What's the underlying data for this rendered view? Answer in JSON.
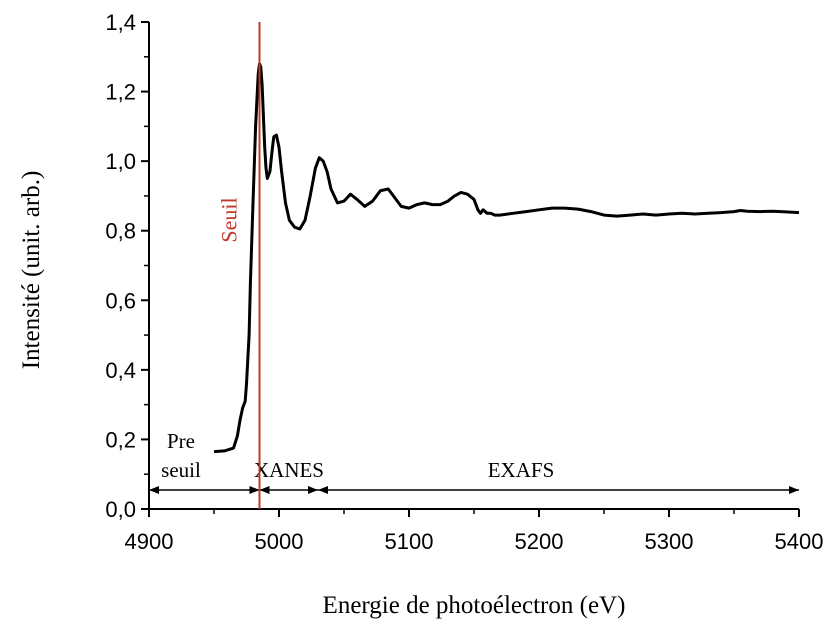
{
  "chart_data": {
    "type": "line",
    "xlabel": "Energie de photoélectron (eV)",
    "ylabel": "Intensité (unit. arb.)",
    "xlim": [
      4900,
      5400
    ],
    "ylim": [
      0.0,
      1.4
    ],
    "xticks": [
      4900,
      5000,
      5100,
      5200,
      5300,
      5400
    ],
    "xtick_labels": [
      "4900",
      "5000",
      "5100",
      "5200",
      "5300",
      "5400"
    ],
    "yticks": [
      0.0,
      0.2,
      0.4,
      0.6,
      0.8,
      1.0,
      1.2,
      1.4
    ],
    "ytick_labels": [
      "0,0",
      "0,2",
      "0,4",
      "0,6",
      "0,8",
      "1,0",
      "1,2",
      "1,4"
    ],
    "grid": false,
    "series": [
      {
        "x": [
          4950,
          4958,
          4965,
          4968,
          4970,
          4972,
          4974,
          4975,
          4977,
          4978,
          4980,
          4982,
          4984,
          4985,
          4986,
          4987,
          4988,
          4989,
          4990,
          4991,
          4993,
          4995,
          4996,
          4998,
          5000,
          5002,
          5005,
          5008,
          5012,
          5016,
          5020,
          5024,
          5028,
          5031,
          5034,
          5037,
          5040,
          5045,
          5050,
          5055,
          5060,
          5066,
          5072,
          5078,
          5084,
          5088,
          5094,
          5100,
          5106,
          5112,
          5118,
          5124,
          5130,
          5135,
          5140,
          5145,
          5150,
          5153,
          5155,
          5157,
          5160,
          5163,
          5166,
          5170,
          5180,
          5190,
          5200,
          5210,
          5220,
          5230,
          5240,
          5250,
          5260,
          5270,
          5280,
          5290,
          5300,
          5310,
          5320,
          5330,
          5340,
          5350,
          5355,
          5360,
          5370,
          5380,
          5390,
          5400
        ],
        "y": [
          0.165,
          0.167,
          0.175,
          0.21,
          0.255,
          0.29,
          0.31,
          0.36,
          0.5,
          0.65,
          0.88,
          1.1,
          1.25,
          1.28,
          1.27,
          1.22,
          1.13,
          1.04,
          0.98,
          0.95,
          0.97,
          1.04,
          1.07,
          1.075,
          1.04,
          0.97,
          0.88,
          0.83,
          0.81,
          0.805,
          0.83,
          0.9,
          0.98,
          1.01,
          1.0,
          0.97,
          0.92,
          0.88,
          0.885,
          0.905,
          0.89,
          0.87,
          0.885,
          0.915,
          0.92,
          0.9,
          0.87,
          0.865,
          0.875,
          0.88,
          0.875,
          0.875,
          0.885,
          0.9,
          0.91,
          0.905,
          0.89,
          0.86,
          0.85,
          0.86,
          0.85,
          0.85,
          0.845,
          0.845,
          0.85,
          0.855,
          0.86,
          0.865,
          0.865,
          0.862,
          0.855,
          0.845,
          0.842,
          0.845,
          0.848,
          0.845,
          0.848,
          0.85,
          0.848,
          0.85,
          0.852,
          0.855,
          0.858,
          0.856,
          0.855,
          0.856,
          0.854,
          0.852
        ],
        "color": "#000000"
      }
    ],
    "annotations": {
      "edge_label": "Seuil",
      "edge_x": 4985,
      "edge_color": "#c0392b",
      "regions": [
        {
          "label_lines": [
            "Pre",
            "seuil"
          ],
          "x_start": 4900,
          "x_end": 4985
        },
        {
          "label_lines": [
            "XANES"
          ],
          "x_start": 4985,
          "x_end": 5030
        },
        {
          "label_lines": [
            "EXAFS"
          ],
          "x_start": 5030,
          "x_end": 5400
        }
      ]
    }
  }
}
